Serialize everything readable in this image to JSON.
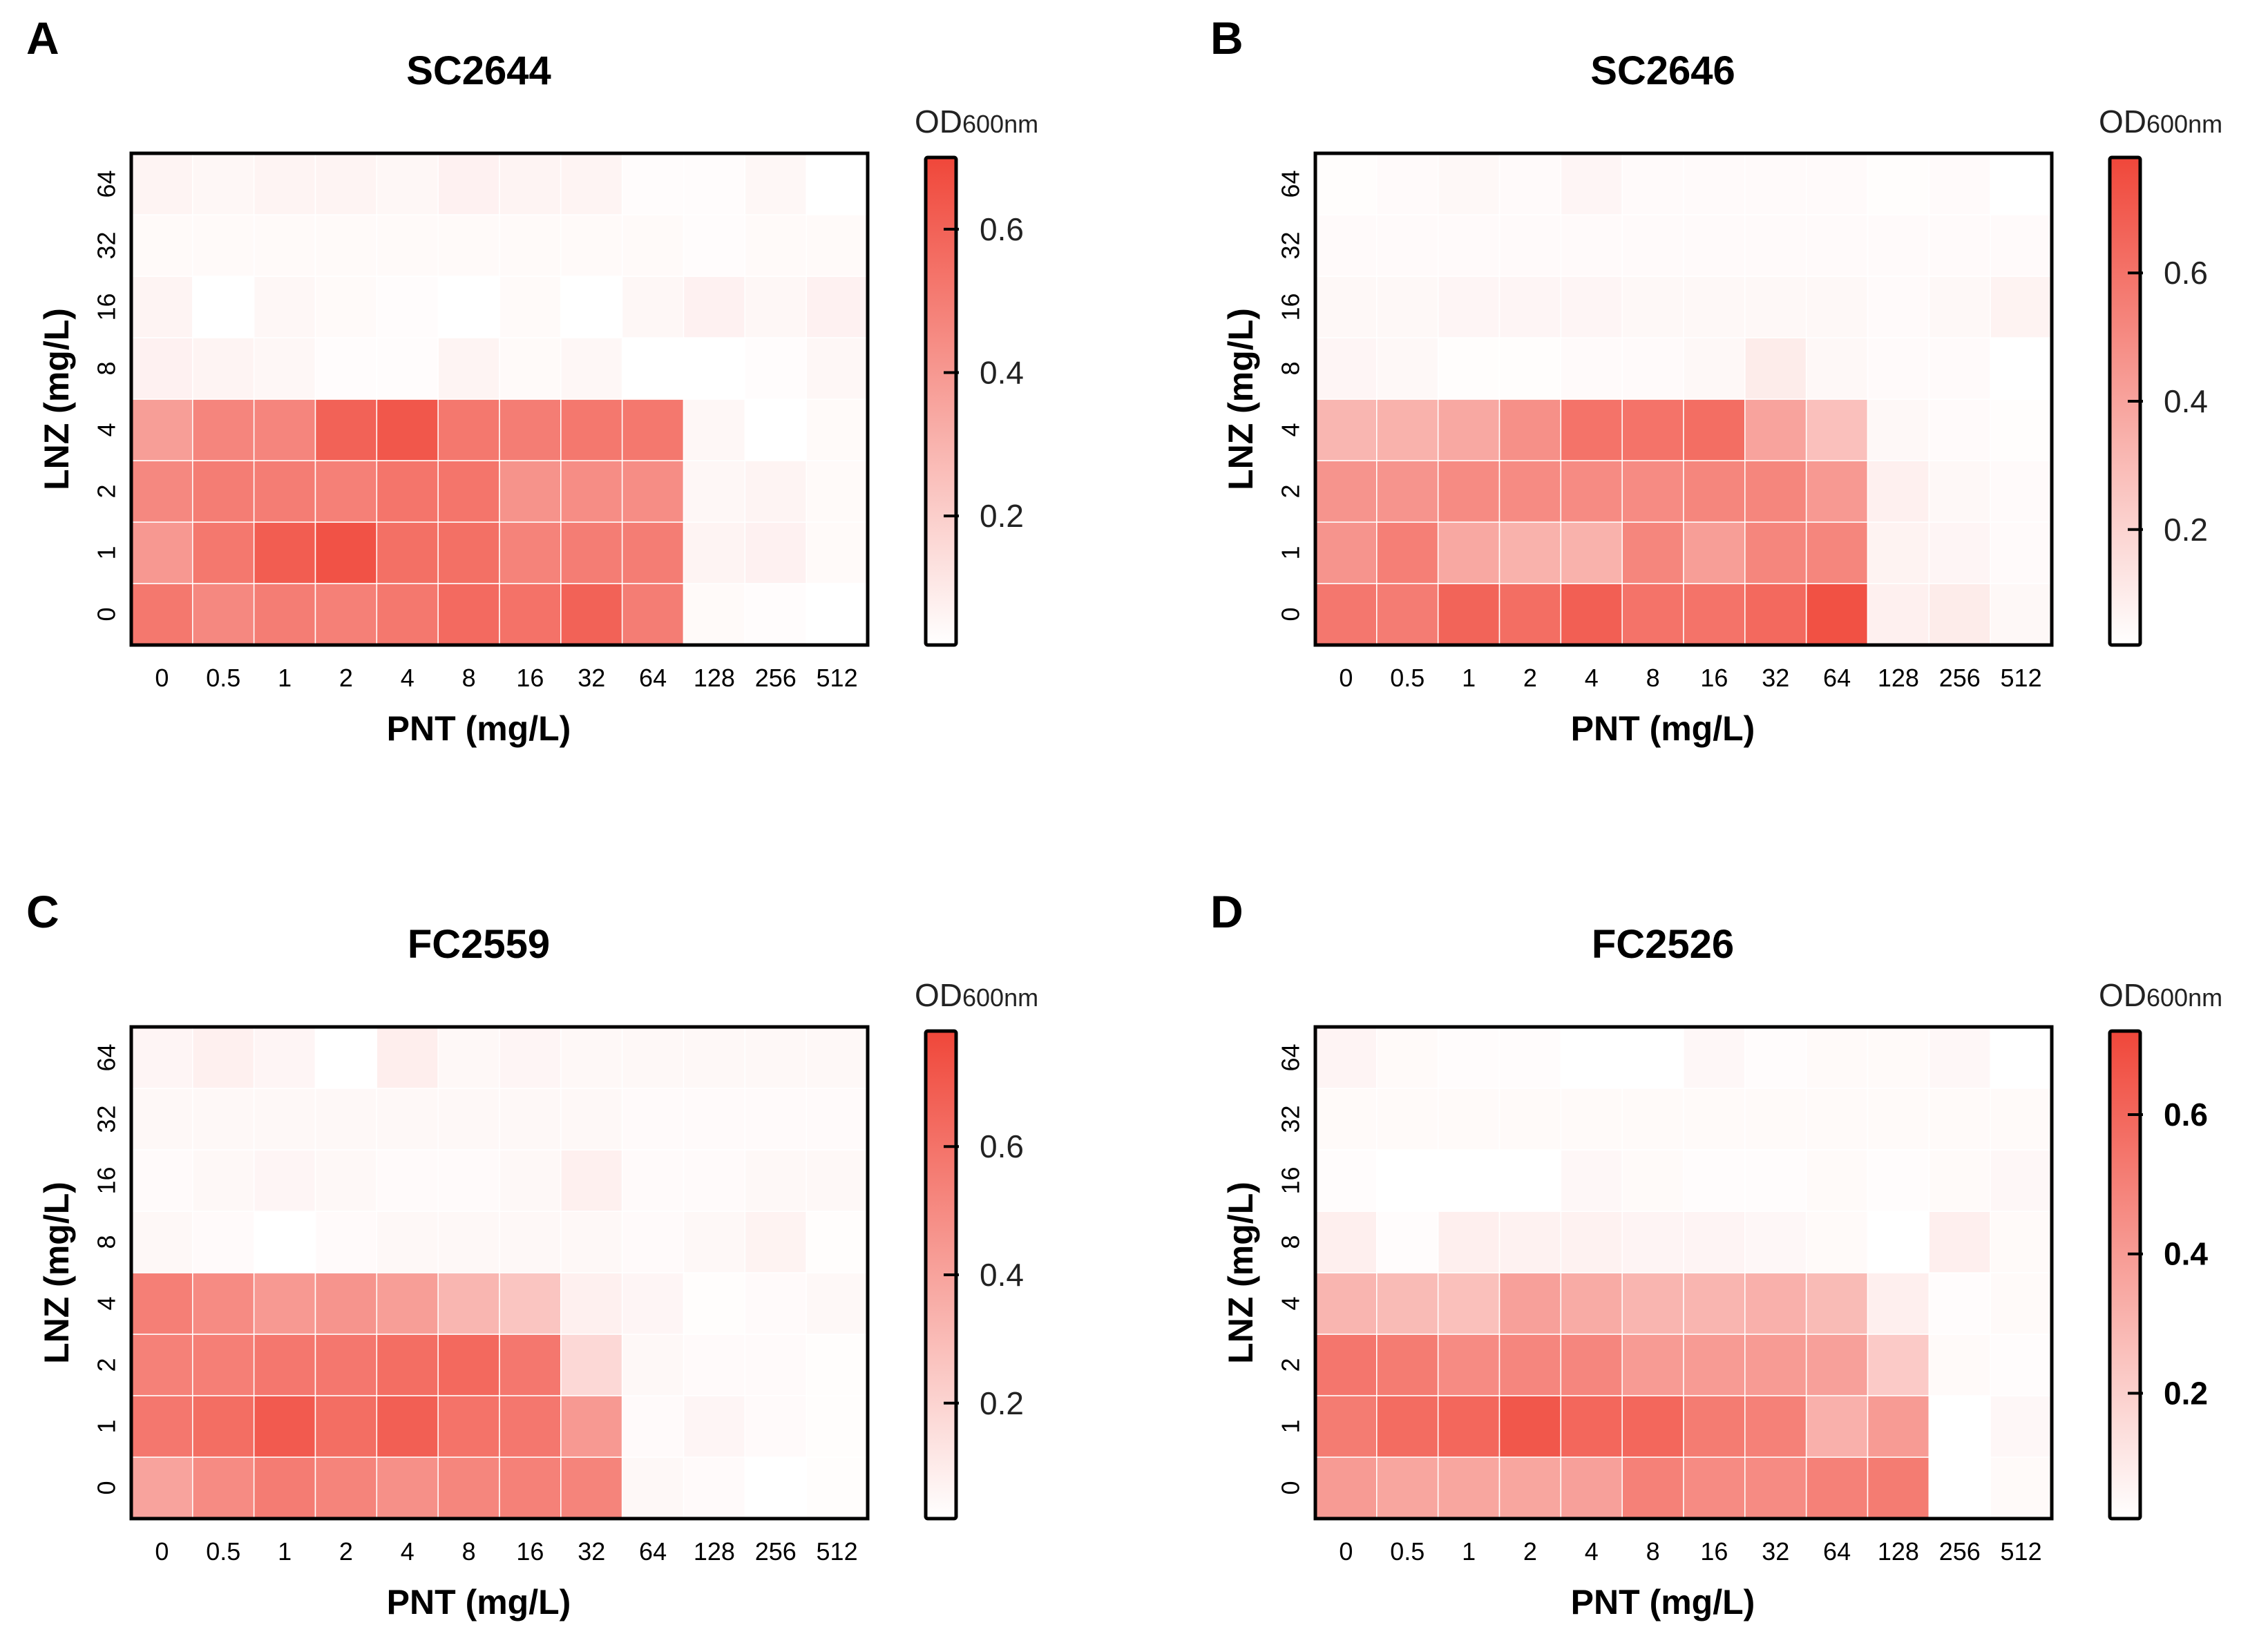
{
  "chart_data": [
    {
      "type": "heatmap",
      "panel_label": "A",
      "title": "SC2644",
      "xlabel": "PNT (mg/L)",
      "ylabel": "LNZ (mg/L)",
      "x_categories": [
        "0",
        "0.5",
        "1",
        "2",
        "4",
        "8",
        "16",
        "32",
        "64",
        "128",
        "256",
        "512"
      ],
      "y_categories": [
        "0",
        "1",
        "2",
        "4",
        "8",
        "16",
        "32",
        "64"
      ],
      "colorbar": {
        "title": "OD",
        "title_sub": "600nm",
        "ticks": [
          "0.2",
          "0.4",
          "0.6"
        ],
        "tick_values": [
          0.2,
          0.4,
          0.6
        ],
        "range": [
          0.02,
          0.7
        ],
        "bold": false
      },
      "values": [
        [
          0.52,
          0.46,
          0.5,
          0.49,
          0.52,
          0.57,
          0.54,
          0.6,
          0.5,
          0.04,
          0.03,
          0.02
        ],
        [
          0.4,
          0.52,
          0.62,
          0.66,
          0.55,
          0.55,
          0.48,
          0.5,
          0.5,
          0.06,
          0.07,
          0.04
        ],
        [
          0.46,
          0.5,
          0.5,
          0.49,
          0.53,
          0.53,
          0.42,
          0.44,
          0.44,
          0.05,
          0.06,
          0.04
        ],
        [
          0.38,
          0.47,
          0.47,
          0.6,
          0.64,
          0.52,
          0.5,
          0.52,
          0.52,
          0.05,
          0.02,
          0.04
        ],
        [
          0.07,
          0.06,
          0.05,
          0.03,
          0.03,
          0.06,
          0.04,
          0.05,
          0.02,
          0.01,
          0.03,
          0.05
        ],
        [
          0.06,
          0.01,
          0.05,
          0.04,
          0.03,
          0.02,
          0.04,
          0.02,
          0.05,
          0.07,
          0.05,
          0.07
        ],
        [
          0.04,
          0.04,
          0.04,
          0.04,
          0.04,
          0.04,
          0.04,
          0.04,
          0.04,
          0.03,
          0.04,
          0.04
        ],
        [
          0.06,
          0.05,
          0.06,
          0.06,
          0.05,
          0.07,
          0.06,
          0.06,
          0.03,
          0.03,
          0.05,
          0.01
        ]
      ]
    },
    {
      "type": "heatmap",
      "panel_label": "B",
      "title": "SC2646",
      "xlabel": "PNT (mg/L)",
      "ylabel": "LNZ (mg/L)",
      "x_categories": [
        "0",
        "0.5",
        "1",
        "2",
        "4",
        "8",
        "16",
        "32",
        "64",
        "128",
        "256",
        "512"
      ],
      "y_categories": [
        "0",
        "1",
        "2",
        "4",
        "8",
        "16",
        "32",
        "64"
      ],
      "colorbar": {
        "title": "OD",
        "title_sub": "600nm",
        "ticks": [
          "0.2",
          "0.4",
          "0.6"
        ],
        "tick_values": [
          0.2,
          0.4,
          0.6
        ],
        "range": [
          0.02,
          0.78
        ],
        "bold": false
      },
      "values": [
        [
          0.58,
          0.56,
          0.66,
          0.62,
          0.68,
          0.6,
          0.6,
          0.64,
          0.74,
          0.08,
          0.1,
          0.05
        ],
        [
          0.46,
          0.55,
          0.38,
          0.34,
          0.34,
          0.52,
          0.42,
          0.52,
          0.52,
          0.07,
          0.06,
          0.04
        ],
        [
          0.46,
          0.46,
          0.5,
          0.5,
          0.5,
          0.5,
          0.52,
          0.52,
          0.44,
          0.08,
          0.05,
          0.04
        ],
        [
          0.32,
          0.34,
          0.38,
          0.48,
          0.6,
          0.6,
          0.62,
          0.4,
          0.28,
          0.05,
          0.04,
          0.03
        ],
        [
          0.06,
          0.05,
          0.03,
          0.03,
          0.04,
          0.04,
          0.05,
          0.1,
          0.05,
          0.04,
          0.04,
          0.01
        ],
        [
          0.05,
          0.05,
          0.06,
          0.06,
          0.06,
          0.05,
          0.05,
          0.05,
          0.05,
          0.04,
          0.05,
          0.07
        ],
        [
          0.04,
          0.04,
          0.04,
          0.04,
          0.04,
          0.04,
          0.04,
          0.04,
          0.04,
          0.04,
          0.04,
          0.04
        ],
        [
          0.03,
          0.04,
          0.05,
          0.04,
          0.06,
          0.04,
          0.04,
          0.04,
          0.04,
          0.03,
          0.04,
          0.02
        ]
      ]
    },
    {
      "type": "heatmap",
      "panel_label": "C",
      "title": "FC2559",
      "xlabel": "PNT (mg/L)",
      "ylabel": "LNZ (mg/L)",
      "x_categories": [
        "0",
        "0.5",
        "1",
        "2",
        "4",
        "8",
        "16",
        "32",
        "64",
        "128",
        "256",
        "512"
      ],
      "y_categories": [
        "0",
        "1",
        "2",
        "4",
        "8",
        "16",
        "32",
        "64"
      ],
      "colorbar": {
        "title": "OD",
        "title_sub": "600nm",
        "ticks": [
          "0.2",
          "0.4",
          "0.6"
        ],
        "tick_values": [
          0.2,
          0.4,
          0.6
        ],
        "range": [
          0.02,
          0.78
        ],
        "bold": false
      },
      "values": [
        [
          0.4,
          0.5,
          0.56,
          0.53,
          0.48,
          0.52,
          0.54,
          0.53,
          0.05,
          0.04,
          0.02,
          0.03
        ],
        [
          0.58,
          0.62,
          0.7,
          0.62,
          0.68,
          0.6,
          0.58,
          0.44,
          0.04,
          0.06,
          0.04,
          0.03
        ],
        [
          0.54,
          0.55,
          0.58,
          0.58,
          0.62,
          0.64,
          0.58,
          0.18,
          0.05,
          0.04,
          0.04,
          0.03
        ],
        [
          0.55,
          0.5,
          0.44,
          0.46,
          0.42,
          0.32,
          0.26,
          0.08,
          0.06,
          0.03,
          0.04,
          0.05
        ],
        [
          0.05,
          0.04,
          0.02,
          0.04,
          0.05,
          0.05,
          0.05,
          0.05,
          0.04,
          0.05,
          0.07,
          0.03
        ],
        [
          0.04,
          0.05,
          0.06,
          0.05,
          0.04,
          0.04,
          0.05,
          0.08,
          0.04,
          0.04,
          0.05,
          0.05
        ],
        [
          0.05,
          0.05,
          0.05,
          0.05,
          0.05,
          0.05,
          0.05,
          0.05,
          0.04,
          0.04,
          0.04,
          0.04
        ],
        [
          0.06,
          0.08,
          0.06,
          0.01,
          0.09,
          0.05,
          0.06,
          0.05,
          0.05,
          0.05,
          0.05,
          0.05
        ]
      ]
    },
    {
      "type": "heatmap",
      "panel_label": "D",
      "title": "FC2526",
      "xlabel": "PNT (mg/L)",
      "ylabel": "LNZ (mg/L)",
      "x_categories": [
        "0",
        "0.5",
        "1",
        "2",
        "4",
        "8",
        "16",
        "32",
        "64",
        "128",
        "256",
        "512"
      ],
      "y_categories": [
        "0",
        "1",
        "2",
        "4",
        "8",
        "16",
        "32",
        "64"
      ],
      "colorbar": {
        "title": "OD",
        "title_sub": "600nm",
        "ticks": [
          "0.2",
          "0.4",
          "0.6"
        ],
        "tick_values": [
          0.2,
          0.4,
          0.6
        ],
        "range": [
          0.02,
          0.72
        ],
        "bold": true
      },
      "values": [
        [
          0.4,
          0.36,
          0.36,
          0.36,
          0.38,
          0.5,
          0.46,
          0.46,
          0.5,
          0.52,
          0.01,
          0.04
        ],
        [
          0.52,
          0.58,
          0.6,
          0.66,
          0.6,
          0.6,
          0.52,
          0.5,
          0.32,
          0.4,
          0.02,
          0.05
        ],
        [
          0.54,
          0.52,
          0.46,
          0.48,
          0.48,
          0.4,
          0.4,
          0.4,
          0.38,
          0.22,
          0.04,
          0.03
        ],
        [
          0.3,
          0.28,
          0.26,
          0.38,
          0.34,
          0.3,
          0.3,
          0.32,
          0.28,
          0.08,
          0.03,
          0.04
        ],
        [
          0.08,
          0.03,
          0.08,
          0.07,
          0.07,
          0.06,
          0.06,
          0.05,
          0.04,
          0.02,
          0.08,
          0.04
        ],
        [
          0.03,
          0.02,
          0.01,
          0.01,
          0.05,
          0.04,
          0.03,
          0.03,
          0.04,
          0.03,
          0.04,
          0.05
        ],
        [
          0.04,
          0.04,
          0.04,
          0.04,
          0.04,
          0.04,
          0.04,
          0.04,
          0.04,
          0.04,
          0.04,
          0.04
        ],
        [
          0.06,
          0.04,
          0.03,
          0.03,
          0.02,
          0.01,
          0.05,
          0.03,
          0.04,
          0.04,
          0.05,
          0.02
        ]
      ]
    }
  ]
}
